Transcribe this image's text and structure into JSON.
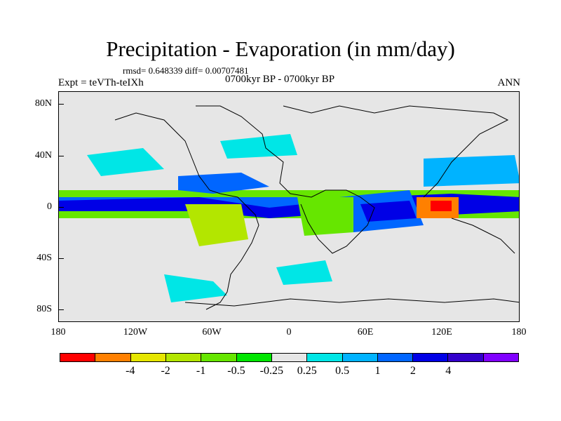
{
  "title": "Precipitation - Evaporation (in mm/day)",
  "stats": "rmsd= 0.648339 diff= 0.00707481",
  "experiment": "Expt = teVTh-teIXh",
  "period": "0700kyr BP - 0700kyr BP",
  "season": "ANN",
  "y_ticks": [
    "80N",
    "40N",
    "0",
    "40S",
    "80S"
  ],
  "x_ticks": [
    "180",
    "120W",
    "60W",
    "0",
    "60E",
    "120E",
    "180"
  ],
  "colorbar": {
    "colors": [
      "#ff0000",
      "#ff8000",
      "#e6e600",
      "#b3e600",
      "#66e600",
      "#00e600",
      "#e6e6e6",
      "#00e6e6",
      "#00b3ff",
      "#0066ff",
      "#0000e6",
      "#3300cc",
      "#8000ff"
    ],
    "labels": [
      "-4",
      "-2",
      "-1",
      "-0.5",
      "-0.25",
      "0.25",
      "0.5",
      "1",
      "2",
      "4"
    ]
  }
}
